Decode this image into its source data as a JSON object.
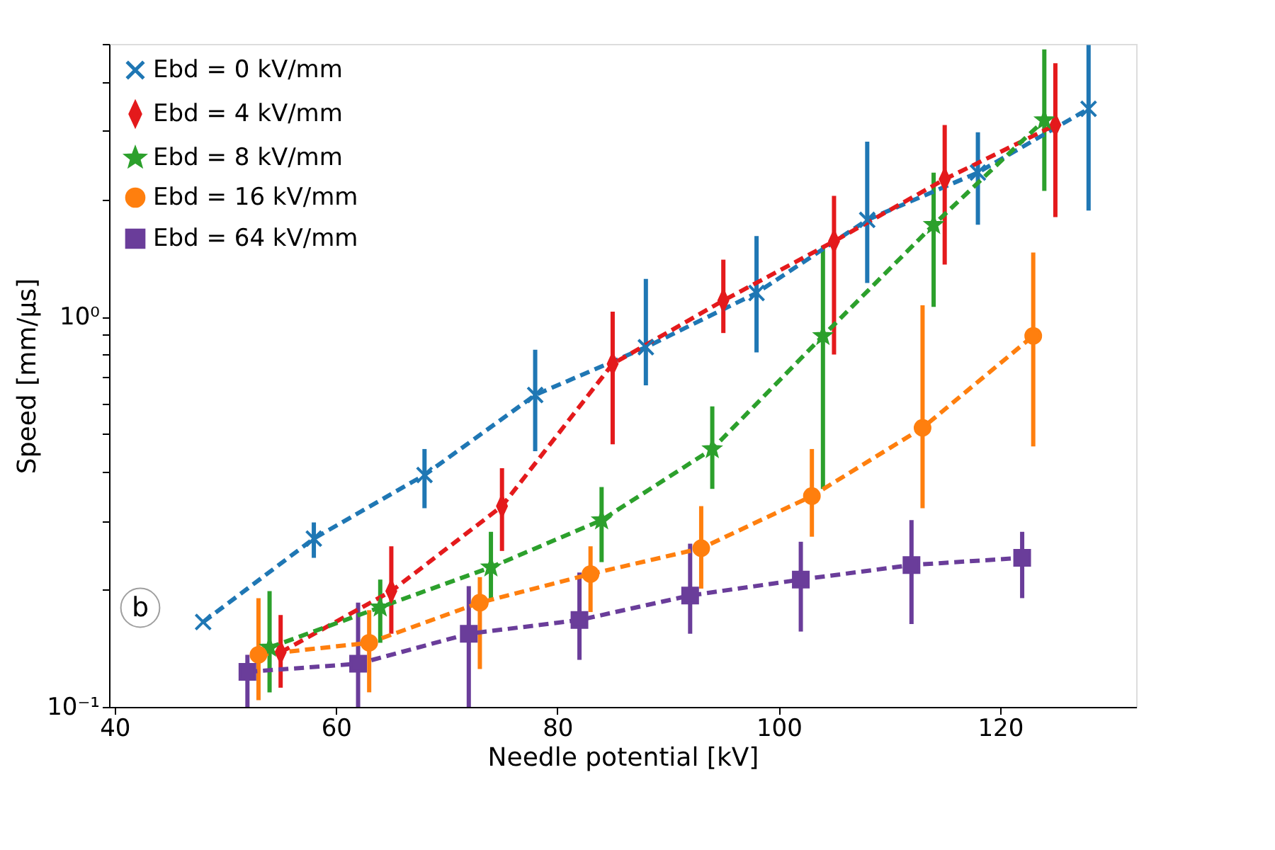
{
  "chart_data": {
    "type": "line",
    "xlabel": "Needle potential [kV]",
    "ylabel": "Speed [mm/μs]",
    "log": "y",
    "xlim": [
      39.5,
      132.3
    ],
    "ylim": [
      0.1,
      5
    ],
    "xticks": [
      40,
      60,
      80,
      100,
      120
    ],
    "yticks": [
      {
        "value": 0.1,
        "label": "10⁻¹"
      },
      {
        "value": 0.2,
        "label": null
      },
      {
        "value": 0.3,
        "label": null
      },
      {
        "value": 0.4,
        "label": null
      },
      {
        "value": 0.5,
        "label": null
      },
      {
        "value": 0.6,
        "label": null
      },
      {
        "value": 0.7,
        "label": null
      },
      {
        "value": 0.8,
        "label": null
      },
      {
        "value": 0.9,
        "label": null
      },
      {
        "value": 1,
        "label": "10⁰"
      },
      {
        "value": 2,
        "label": null
      },
      {
        "value": 3,
        "label": null
      },
      {
        "value": 4,
        "label": null
      },
      {
        "value": 5,
        "label": null
      }
    ],
    "grid": false,
    "legend": "top left",
    "line_style": "dashed",
    "annotations": [
      "b"
    ],
    "series": [
      {
        "name": "Ebd = 0 kV/mm",
        "color": "#1f77b4",
        "marker": "cross",
        "x": [
          48,
          58,
          68,
          78,
          88,
          98,
          108,
          118,
          128
        ],
        "values": [
          0.165,
          0.27,
          0.393,
          0.63,
          0.835,
          1.15,
          1.77,
          2.34,
          3.41
        ],
        "errors": [
          null,
          [
            0.241,
            0.297
          ],
          [
            0.323,
            0.458
          ],
          [
            0.452,
            0.823
          ],
          [
            0.667,
            1.25
          ],
          [
            0.81,
            1.61
          ],
          [
            1.22,
            2.81
          ],
          [
            1.72,
            2.97
          ],
          [
            1.87,
            4.97
          ]
        ]
      },
      {
        "name": "Ebd = 4 kV/mm",
        "color": "#e41a1c",
        "marker": "diamond",
        "x": [
          55,
          65,
          75,
          85,
          95,
          105,
          115,
          125
        ],
        "values": [
          0.138,
          0.198,
          0.327,
          0.757,
          1.1,
          1.56,
          2.25,
          3.1
        ],
        "errors": [
          [
            0.112,
            0.172
          ],
          [
            0.154,
            0.258
          ],
          [
            0.251,
            0.409
          ],
          [
            0.471,
            1.03
          ],
          [
            0.908,
            1.4
          ],
          [
            0.8,
            2.04
          ],
          [
            1.36,
            3.1
          ],
          [
            1.8,
            4.46
          ]
        ]
      },
      {
        "name": "Ebd = 8 kV/mm",
        "color": "#2ca02c",
        "marker": "star",
        "x": [
          54,
          64,
          74,
          84,
          94,
          104,
          114,
          124
        ],
        "values": [
          0.142,
          0.18,
          0.228,
          0.301,
          0.458,
          0.893,
          1.72,
          3.19
        ],
        "errors": [
          [
            0.109,
            0.198
          ],
          [
            0.146,
            0.212
          ],
          [
            0.187,
            0.281
          ],
          [
            0.235,
            0.366
          ],
          [
            0.362,
            0.589
          ],
          [
            0.362,
            1.52
          ],
          [
            1.06,
            2.34
          ],
          [
            2.1,
            4.84
          ]
        ]
      },
      {
        "name": "Ebd = 16 kV/mm",
        "color": "#ff7f0e",
        "marker": "circle",
        "x": [
          53,
          63,
          73,
          83,
          93,
          103,
          113,
          123
        ],
        "values": [
          0.136,
          0.146,
          0.185,
          0.219,
          0.255,
          0.347,
          0.519,
          0.893
        ],
        "errors": [
          [
            0.104,
            0.19
          ],
          [
            0.109,
            0.177
          ],
          [
            0.125,
            0.215
          ],
          [
            0.175,
            0.258
          ],
          [
            0.201,
            0.327
          ],
          [
            0.273,
            0.458
          ],
          [
            0.323,
            1.07
          ],
          [
            0.465,
            1.46
          ]
        ]
      },
      {
        "name": "Ebd = 64 kV/mm",
        "color": "#6a3d9a",
        "marker": "square",
        "x": [
          52,
          62,
          72,
          82,
          92,
          102,
          112,
          122
        ],
        "values": [
          0.123,
          0.129,
          0.154,
          0.167,
          0.193,
          0.212,
          0.231,
          0.241
        ],
        "errors": [
          [
            0.1,
            0.136
          ],
          [
            0.1,
            0.185
          ],
          [
            0.1,
            0.204
          ],
          [
            0.132,
            0.221
          ],
          [
            0.154,
            0.262
          ],
          [
            0.156,
            0.265
          ],
          [
            0.163,
            0.301
          ],
          [
            0.19,
            0.281
          ]
        ]
      }
    ]
  }
}
